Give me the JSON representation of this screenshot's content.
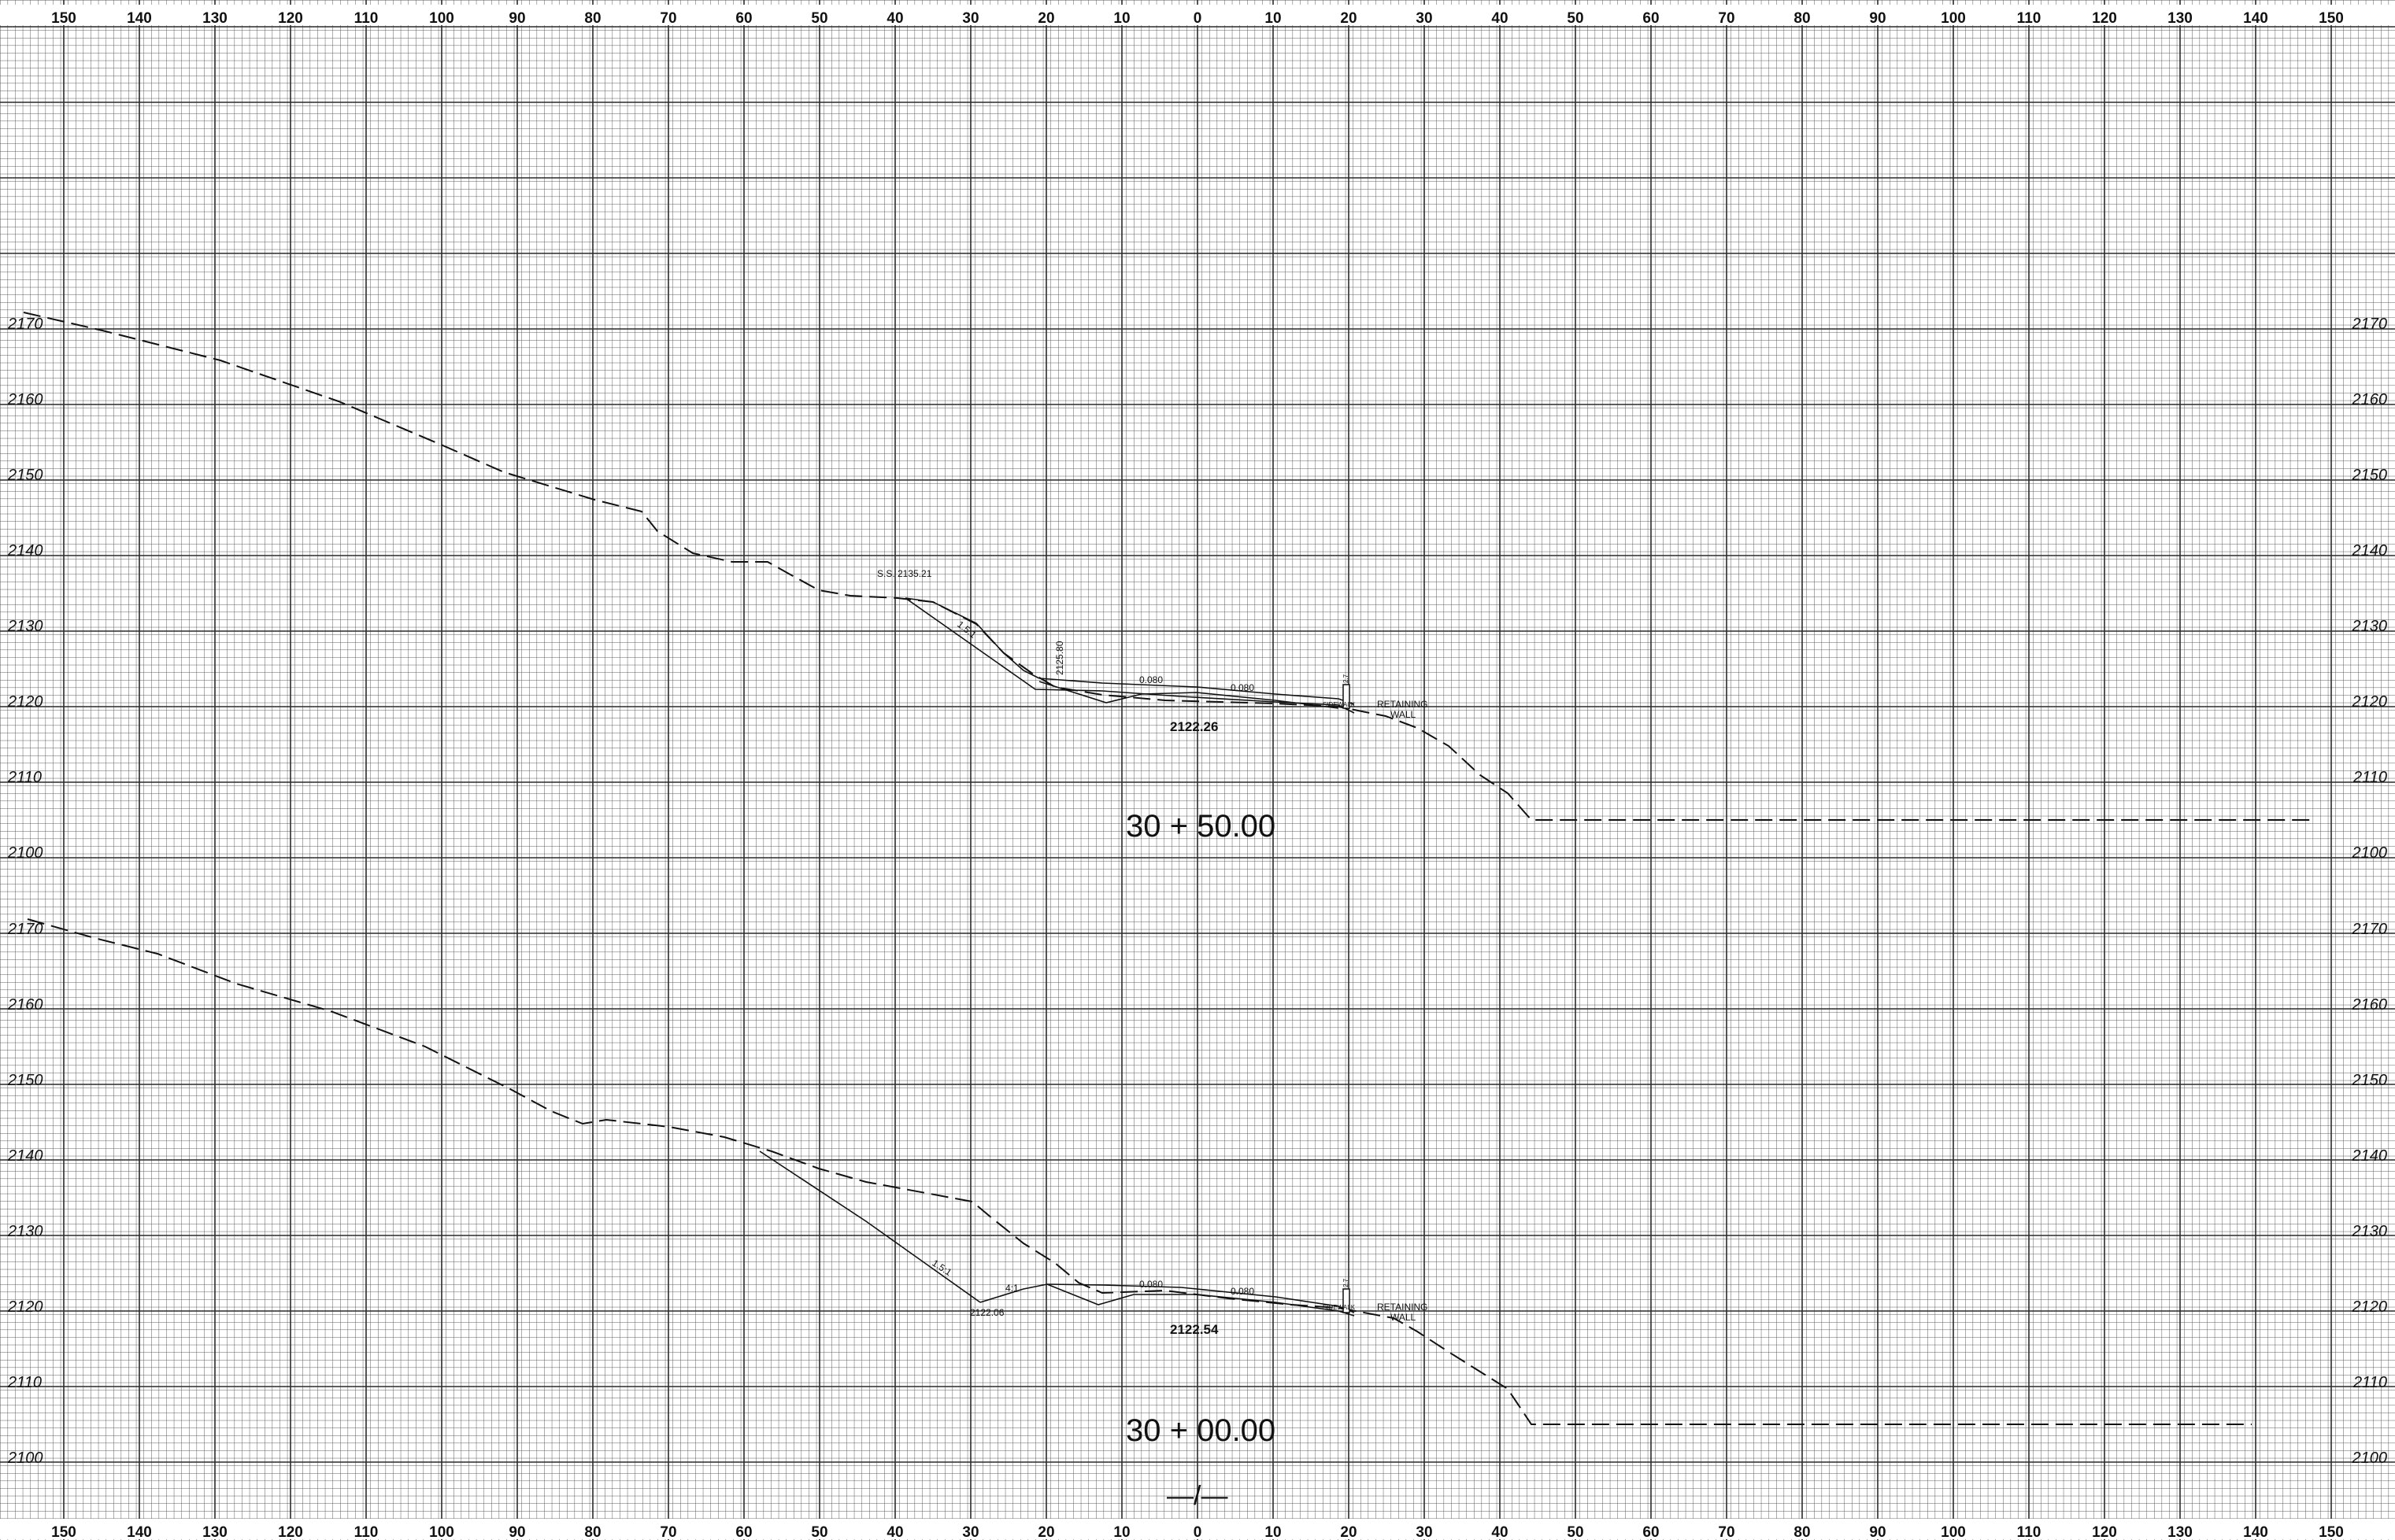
{
  "offset_labels": [
    "150",
    "140",
    "130",
    "120",
    "110",
    "100",
    "90",
    "80",
    "70",
    "60",
    "50",
    "40",
    "30",
    "20",
    "10",
    "0",
    "10",
    "20",
    "30",
    "40",
    "50",
    "60",
    "70",
    "80",
    "90",
    "100",
    "110",
    "120",
    "130",
    "140",
    "150"
  ],
  "sections": [
    {
      "station": "30 + 50.00",
      "elevation_labels": [
        "2170",
        "2160",
        "2150",
        "2140",
        "2130",
        "2120",
        "2110",
        "2100"
      ],
      "annotations": {
        "ss_elevation": "S.S. 2135.21",
        "vertical_elevation": "2125.80",
        "slope": "1.5:1",
        "cross_slope_left": "0.080",
        "cross_slope_right": "0.080",
        "wall_label_1": "RETAINING",
        "wall_label_2": "WALL",
        "wall_small": "SIDEWALK",
        "wall_height": "2.7",
        "centerline_elevation": "2122.26"
      }
    },
    {
      "station": "30 + 00.00",
      "elevation_labels": [
        "2170",
        "2160",
        "2150",
        "2140",
        "2130",
        "2120",
        "2110",
        "2100"
      ],
      "annotations": {
        "slope": "1.5:1",
        "ditch_slope": "4:1",
        "ditch_elevation": "2122.06",
        "cross_slope_left": "0.080",
        "cross_slope_right": "0.080",
        "wall_label_1": "RETAINING",
        "wall_label_2": "WALL",
        "wall_small": "SIDEWALK",
        "wall_height": "2.7",
        "centerline_elevation": "2122.54"
      }
    }
  ],
  "centerline_symbol": "—/—"
}
